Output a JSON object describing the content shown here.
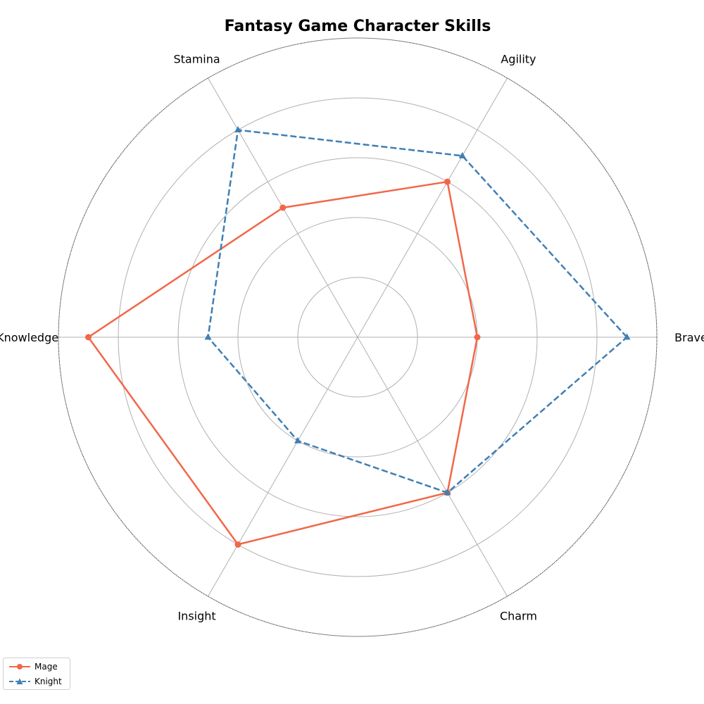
{
  "chart_data": {
    "type": "radar",
    "title": "Fantasy Game Character Skills",
    "categories": [
      "Bravery",
      "Agility",
      "Stamina",
      "Knowledge",
      "Insight",
      "Charm"
    ],
    "rlim": [
      0,
      10
    ],
    "rgrid": [
      2,
      4,
      6,
      8,
      10
    ],
    "legend_position": "bottom-left",
    "series": [
      {
        "name": "Mage",
        "values": [
          4,
          6,
          5,
          9,
          8,
          6
        ],
        "color": "#f26749",
        "linestyle": "solid",
        "marker": "circle"
      },
      {
        "name": "Knight",
        "values": [
          9,
          7,
          8,
          5,
          4,
          6
        ],
        "color": "#3f7fb5",
        "linestyle": "dashed",
        "marker": "triangle"
      }
    ]
  }
}
